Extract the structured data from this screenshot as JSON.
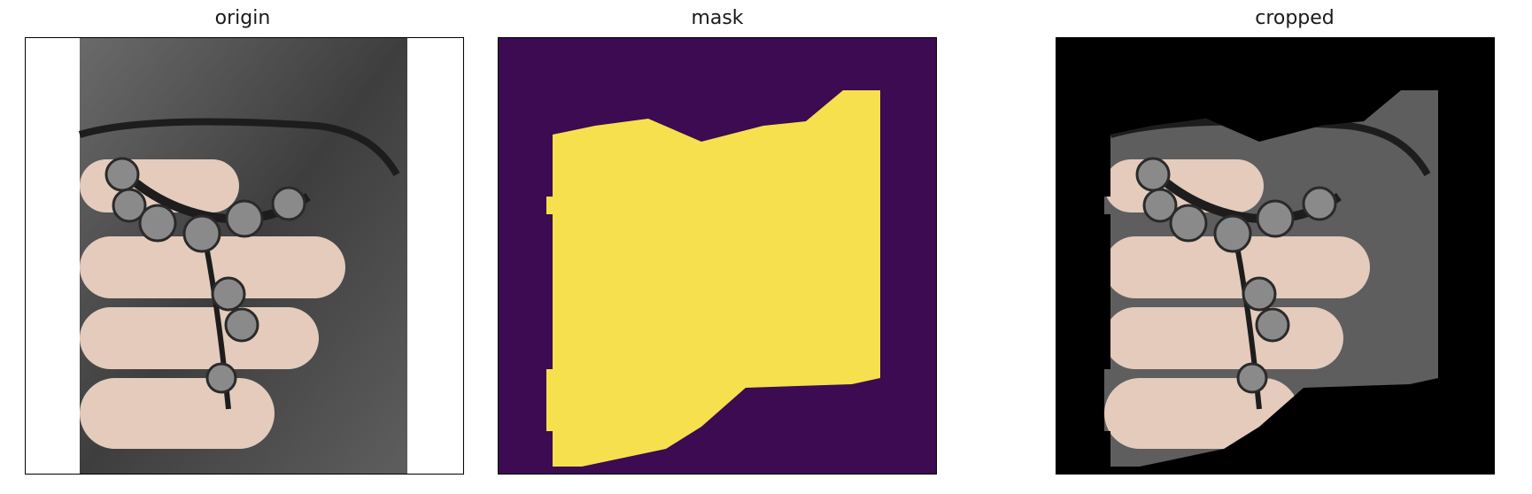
{
  "figure": {
    "panels": [
      {
        "title": "origin"
      },
      {
        "title": "mask"
      },
      {
        "title": "cropped"
      }
    ]
  },
  "colors": {
    "mask_background": "#3c0b52",
    "mask_foreground": "#f6e04d",
    "cropped_background": "#000000",
    "axis_line": "#000000",
    "tabletop_gray": "#5a5a5a",
    "skin": "#e6cdbd"
  }
}
